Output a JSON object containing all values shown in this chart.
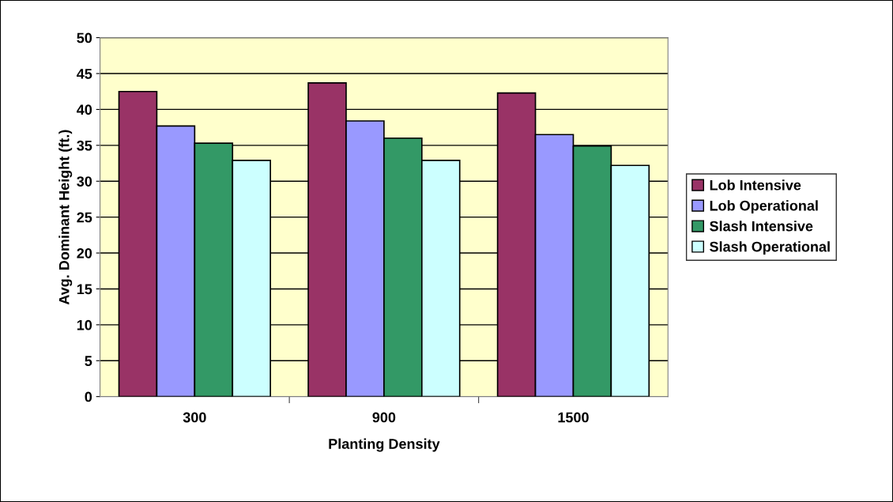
{
  "chart_data": {
    "type": "bar",
    "xlabel": "Planting Density",
    "ylabel": "Avg. Dominant Height (ft.)",
    "categories": [
      "300",
      "900",
      "1500"
    ],
    "series": [
      {
        "name": "Lob Intensive",
        "color": "#993366",
        "values": [
          42.5,
          43.7,
          42.3
        ]
      },
      {
        "name": "Lob Operational",
        "color": "#9999ff",
        "values": [
          37.7,
          38.4,
          36.5
        ]
      },
      {
        "name": "Slash Intensive",
        "color": "#339966",
        "values": [
          35.3,
          36.0,
          34.9
        ]
      },
      {
        "name": "Slash Operational",
        "color": "#ccffff",
        "values": [
          32.9,
          32.9,
          32.2
        ]
      }
    ],
    "ylim": [
      0,
      50
    ],
    "yticks": [
      0,
      5,
      10,
      15,
      20,
      25,
      30,
      35,
      40,
      45,
      50
    ],
    "grid": "y",
    "legend": "right"
  }
}
